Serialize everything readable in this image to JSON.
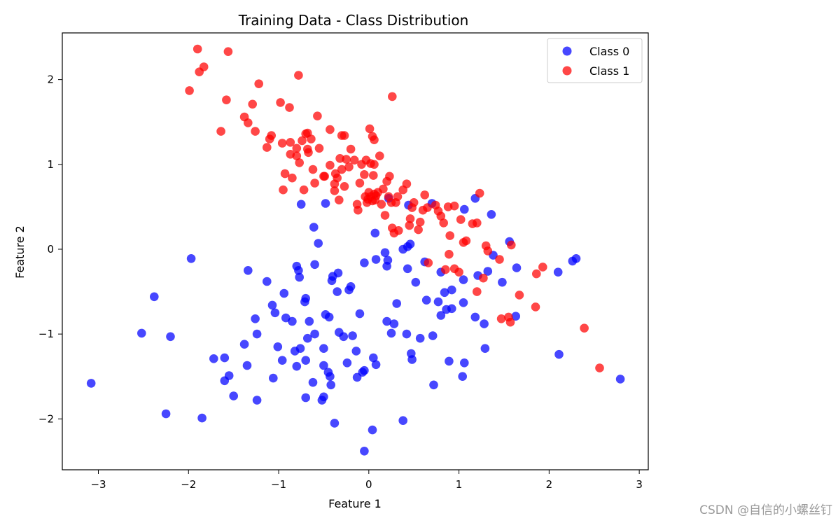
{
  "chart_data": {
    "type": "scatter",
    "title": "Training Data - Class Distribution",
    "xlabel": "Feature 1",
    "ylabel": "Feature 2",
    "xlim": [
      -3.4,
      3.1
    ],
    "ylim": [
      -2.6,
      2.55
    ],
    "xticks": [
      -3,
      -2,
      -1,
      0,
      1,
      2,
      3
    ],
    "xtick_labels": [
      "−3",
      "−2",
      "−1",
      "0",
      "1",
      "2",
      "3"
    ],
    "yticks": [
      -2,
      -1,
      0,
      1,
      2
    ],
    "ytick_labels": [
      "−2",
      "−1",
      "0",
      "1",
      "2"
    ],
    "grid": false,
    "legend_position": "top-right",
    "series": [
      {
        "name": "Class 0",
        "color": "#0000ff",
        "points": [
          [
            -3.08,
            -1.58
          ],
          [
            -2.52,
            -0.99
          ],
          [
            -2.38,
            -0.56
          ],
          [
            -2.25,
            -1.94
          ],
          [
            -2.2,
            -1.03
          ],
          [
            -1.97,
            -0.11
          ],
          [
            -1.85,
            -1.99
          ],
          [
            -1.72,
            -1.29
          ],
          [
            -1.6,
            -1.28
          ],
          [
            -1.6,
            -1.55
          ],
          [
            -1.55,
            -1.49
          ],
          [
            -1.5,
            -1.73
          ],
          [
            -1.38,
            -1.12
          ],
          [
            -1.35,
            -1.37
          ],
          [
            -1.34,
            -0.25
          ],
          [
            -1.26,
            -0.82
          ],
          [
            -1.24,
            -1.0
          ],
          [
            -1.24,
            -1.78
          ],
          [
            -1.13,
            -0.38
          ],
          [
            -1.07,
            -0.66
          ],
          [
            -1.06,
            -1.52
          ],
          [
            -1.04,
            -0.75
          ],
          [
            -1.01,
            -1.15
          ],
          [
            -0.96,
            -1.31
          ],
          [
            -0.94,
            -0.52
          ],
          [
            -0.92,
            -0.81
          ],
          [
            -0.85,
            -0.85
          ],
          [
            -0.82,
            -1.2
          ],
          [
            -0.8,
            -0.2
          ],
          [
            -0.8,
            -1.38
          ],
          [
            -0.78,
            -0.25
          ],
          [
            -0.77,
            -0.33
          ],
          [
            -0.76,
            -1.17
          ],
          [
            -0.75,
            0.53
          ],
          [
            -0.71,
            -0.62
          ],
          [
            -0.7,
            -0.58
          ],
          [
            -0.7,
            -1.31
          ],
          [
            -0.7,
            -1.75
          ],
          [
            -0.68,
            -1.05
          ],
          [
            -0.66,
            -0.85
          ],
          [
            -0.62,
            -1.57
          ],
          [
            -0.61,
            0.26
          ],
          [
            -0.6,
            -0.18
          ],
          [
            -0.6,
            -1.0
          ],
          [
            -0.56,
            0.07
          ],
          [
            -0.52,
            -1.78
          ],
          [
            -0.5,
            -1.37
          ],
          [
            -0.5,
            -1.17
          ],
          [
            -0.5,
            -1.74
          ],
          [
            -0.48,
            0.54
          ],
          [
            -0.48,
            -0.77
          ],
          [
            -0.45,
            -1.45
          ],
          [
            -0.44,
            -0.8
          ],
          [
            -0.43,
            -1.5
          ],
          [
            -0.42,
            -1.6
          ],
          [
            -0.41,
            -0.37
          ],
          [
            -0.4,
            -0.32
          ],
          [
            -0.38,
            -2.05
          ],
          [
            -0.35,
            -0.5
          ],
          [
            -0.34,
            -0.28
          ],
          [
            -0.33,
            -0.98
          ],
          [
            -0.28,
            -1.03
          ],
          [
            -0.24,
            -1.34
          ],
          [
            -0.22,
            -0.48
          ],
          [
            -0.2,
            -0.44
          ],
          [
            -0.18,
            -1.02
          ],
          [
            -0.14,
            -1.2
          ],
          [
            -0.13,
            -1.51
          ],
          [
            -0.1,
            -0.76
          ],
          [
            -0.07,
            -1.45
          ],
          [
            -0.05,
            -1.43
          ],
          [
            -0.05,
            -0.16
          ],
          [
            -0.05,
            -2.38
          ],
          [
            0.04,
            -2.13
          ],
          [
            0.05,
            -1.28
          ],
          [
            0.07,
            0.19
          ],
          [
            0.08,
            -0.12
          ],
          [
            0.08,
            -1.36
          ],
          [
            0.18,
            -0.04
          ],
          [
            0.2,
            -0.2
          ],
          [
            0.2,
            -0.85
          ],
          [
            0.21,
            -0.13
          ],
          [
            0.22,
            0.6
          ],
          [
            0.25,
            -0.99
          ],
          [
            0.28,
            -0.88
          ],
          [
            0.31,
            -0.64
          ],
          [
            0.38,
            -2.02
          ],
          [
            0.38,
            0.0
          ],
          [
            0.42,
            -1.0
          ],
          [
            0.43,
            -0.23
          ],
          [
            0.43,
            0.03
          ],
          [
            0.44,
            0.52
          ],
          [
            0.46,
            0.06
          ],
          [
            0.47,
            -1.23
          ],
          [
            0.48,
            -1.3
          ],
          [
            0.52,
            -0.39
          ],
          [
            0.57,
            -1.05
          ],
          [
            0.62,
            -0.15
          ],
          [
            0.64,
            -0.6
          ],
          [
            0.7,
            0.54
          ],
          [
            0.71,
            -1.02
          ],
          [
            0.72,
            -1.6
          ],
          [
            0.77,
            -0.62
          ],
          [
            0.8,
            -0.27
          ],
          [
            0.8,
            -0.78
          ],
          [
            0.84,
            -0.51
          ],
          [
            0.86,
            -0.71
          ],
          [
            0.89,
            -1.32
          ],
          [
            0.92,
            -0.48
          ],
          [
            0.92,
            -0.7
          ],
          [
            1.04,
            -1.5
          ],
          [
            1.05,
            -0.36
          ],
          [
            1.05,
            -0.63
          ],
          [
            1.06,
            0.47
          ],
          [
            1.06,
            -1.34
          ],
          [
            1.18,
            -0.8
          ],
          [
            1.18,
            0.6
          ],
          [
            1.21,
            -0.31
          ],
          [
            1.28,
            -0.88
          ],
          [
            1.29,
            -1.17
          ],
          [
            1.32,
            -0.26
          ],
          [
            1.36,
            0.41
          ],
          [
            1.38,
            -0.07
          ],
          [
            1.48,
            -0.39
          ],
          [
            1.56,
            0.09
          ],
          [
            1.63,
            -0.79
          ],
          [
            1.64,
            -0.22
          ],
          [
            2.1,
            -0.27
          ],
          [
            2.11,
            -1.24
          ],
          [
            2.26,
            -0.14
          ],
          [
            2.3,
            -0.11
          ],
          [
            2.79,
            -1.53
          ]
        ]
      },
      {
        "name": "Class 1",
        "color": "#ff0000",
        "points": [
          [
            -1.99,
            1.87
          ],
          [
            -1.9,
            2.36
          ],
          [
            -1.88,
            2.09
          ],
          [
            -1.83,
            2.15
          ],
          [
            -1.64,
            1.39
          ],
          [
            -1.58,
            1.76
          ],
          [
            -1.56,
            2.33
          ],
          [
            -1.38,
            1.56
          ],
          [
            -1.34,
            1.49
          ],
          [
            -1.29,
            1.71
          ],
          [
            -1.26,
            1.39
          ],
          [
            -1.22,
            1.95
          ],
          [
            -1.13,
            1.2
          ],
          [
            -1.1,
            1.3
          ],
          [
            -1.08,
            1.34
          ],
          [
            -0.98,
            1.73
          ],
          [
            -0.96,
            1.25
          ],
          [
            -0.95,
            0.7
          ],
          [
            -0.93,
            0.89
          ],
          [
            -0.88,
            1.67
          ],
          [
            -0.87,
            1.26
          ],
          [
            -0.87,
            1.12
          ],
          [
            -0.85,
            0.84
          ],
          [
            -0.8,
            1.19
          ],
          [
            -0.8,
            1.1
          ],
          [
            -0.78,
            2.05
          ],
          [
            -0.77,
            1.02
          ],
          [
            -0.74,
            1.28
          ],
          [
            -0.72,
            0.7
          ],
          [
            -0.7,
            1.36
          ],
          [
            -0.68,
            1.37
          ],
          [
            -0.68,
            1.18
          ],
          [
            -0.67,
            1.14
          ],
          [
            -0.64,
            1.3
          ],
          [
            -0.62,
            0.94
          ],
          [
            -0.6,
            0.78
          ],
          [
            -0.57,
            1.57
          ],
          [
            -0.55,
            1.19
          ],
          [
            -0.5,
            0.86
          ],
          [
            -0.49,
            0.86
          ],
          [
            -0.43,
            1.41
          ],
          [
            -0.43,
            0.99
          ],
          [
            -0.38,
            0.77
          ],
          [
            -0.38,
            0.69
          ],
          [
            -0.37,
            0.89
          ],
          [
            -0.35,
            0.84
          ],
          [
            -0.33,
            0.58
          ],
          [
            -0.32,
            1.07
          ],
          [
            -0.3,
            0.94
          ],
          [
            -0.3,
            1.34
          ],
          [
            -0.27,
            0.74
          ],
          [
            -0.27,
            1.34
          ],
          [
            -0.25,
            1.06
          ],
          [
            -0.22,
            0.97
          ],
          [
            -0.2,
            1.18
          ],
          [
            -0.16,
            1.05
          ],
          [
            -0.13,
            0.53
          ],
          [
            -0.12,
            0.46
          ],
          [
            -0.1,
            0.78
          ],
          [
            -0.08,
            1.0
          ],
          [
            -0.05,
            0.88
          ],
          [
            -0.04,
            0.62
          ],
          [
            -0.03,
            1.05
          ],
          [
            -0.02,
            0.55
          ],
          [
            -0.01,
            0.59
          ],
          [
            0.0,
            0.67
          ],
          [
            0.01,
            1.42
          ],
          [
            0.02,
            1.01
          ],
          [
            0.02,
            0.62
          ],
          [
            0.04,
            0.57
          ],
          [
            0.04,
            1.33
          ],
          [
            0.05,
            0.87
          ],
          [
            0.06,
            1.0
          ],
          [
            0.06,
            0.65
          ],
          [
            0.06,
            1.29
          ],
          [
            0.07,
            0.58
          ],
          [
            0.08,
            0.63
          ],
          [
            0.1,
            0.67
          ],
          [
            0.12,
            1.1
          ],
          [
            0.14,
            0.53
          ],
          [
            0.16,
            0.71
          ],
          [
            0.18,
            0.4
          ],
          [
            0.2,
            0.8
          ],
          [
            0.22,
            0.62
          ],
          [
            0.23,
            0.86
          ],
          [
            0.25,
            0.55
          ],
          [
            0.26,
            0.25
          ],
          [
            0.26,
            1.8
          ],
          [
            0.28,
            0.19
          ],
          [
            0.3,
            0.55
          ],
          [
            0.32,
            0.62
          ],
          [
            0.33,
            0.22
          ],
          [
            0.38,
            0.7
          ],
          [
            0.42,
            0.77
          ],
          [
            0.45,
            0.28
          ],
          [
            0.46,
            0.36
          ],
          [
            0.48,
            0.49
          ],
          [
            0.5,
            0.55
          ],
          [
            0.55,
            0.23
          ],
          [
            0.57,
            0.32
          ],
          [
            0.6,
            0.46
          ],
          [
            0.62,
            0.64
          ],
          [
            0.65,
            0.49
          ],
          [
            0.66,
            -0.16
          ],
          [
            0.74,
            0.52
          ],
          [
            0.77,
            0.45
          ],
          [
            0.8,
            0.39
          ],
          [
            0.83,
            0.31
          ],
          [
            0.85,
            -0.24
          ],
          [
            0.88,
            0.5
          ],
          [
            0.89,
            -0.06
          ],
          [
            0.9,
            0.16
          ],
          [
            0.95,
            0.51
          ],
          [
            0.95,
            -0.23
          ],
          [
            1.0,
            -0.27
          ],
          [
            1.02,
            0.35
          ],
          [
            1.05,
            0.08
          ],
          [
            1.08,
            0.1
          ],
          [
            1.15,
            0.3
          ],
          [
            1.2,
            0.31
          ],
          [
            1.2,
            -0.5
          ],
          [
            1.23,
            0.66
          ],
          [
            1.27,
            -0.34
          ],
          [
            1.3,
            0.04
          ],
          [
            1.32,
            -0.02
          ],
          [
            1.45,
            -0.12
          ],
          [
            1.47,
            -0.82
          ],
          [
            1.55,
            -0.8
          ],
          [
            1.57,
            -0.86
          ],
          [
            1.58,
            0.05
          ],
          [
            1.67,
            -0.54
          ],
          [
            1.85,
            -0.68
          ],
          [
            1.86,
            -0.29
          ],
          [
            1.93,
            -0.21
          ],
          [
            2.39,
            -0.93
          ],
          [
            2.56,
            -1.4
          ]
        ]
      }
    ]
  },
  "watermark": "CSDN @自信的小螺丝钉"
}
